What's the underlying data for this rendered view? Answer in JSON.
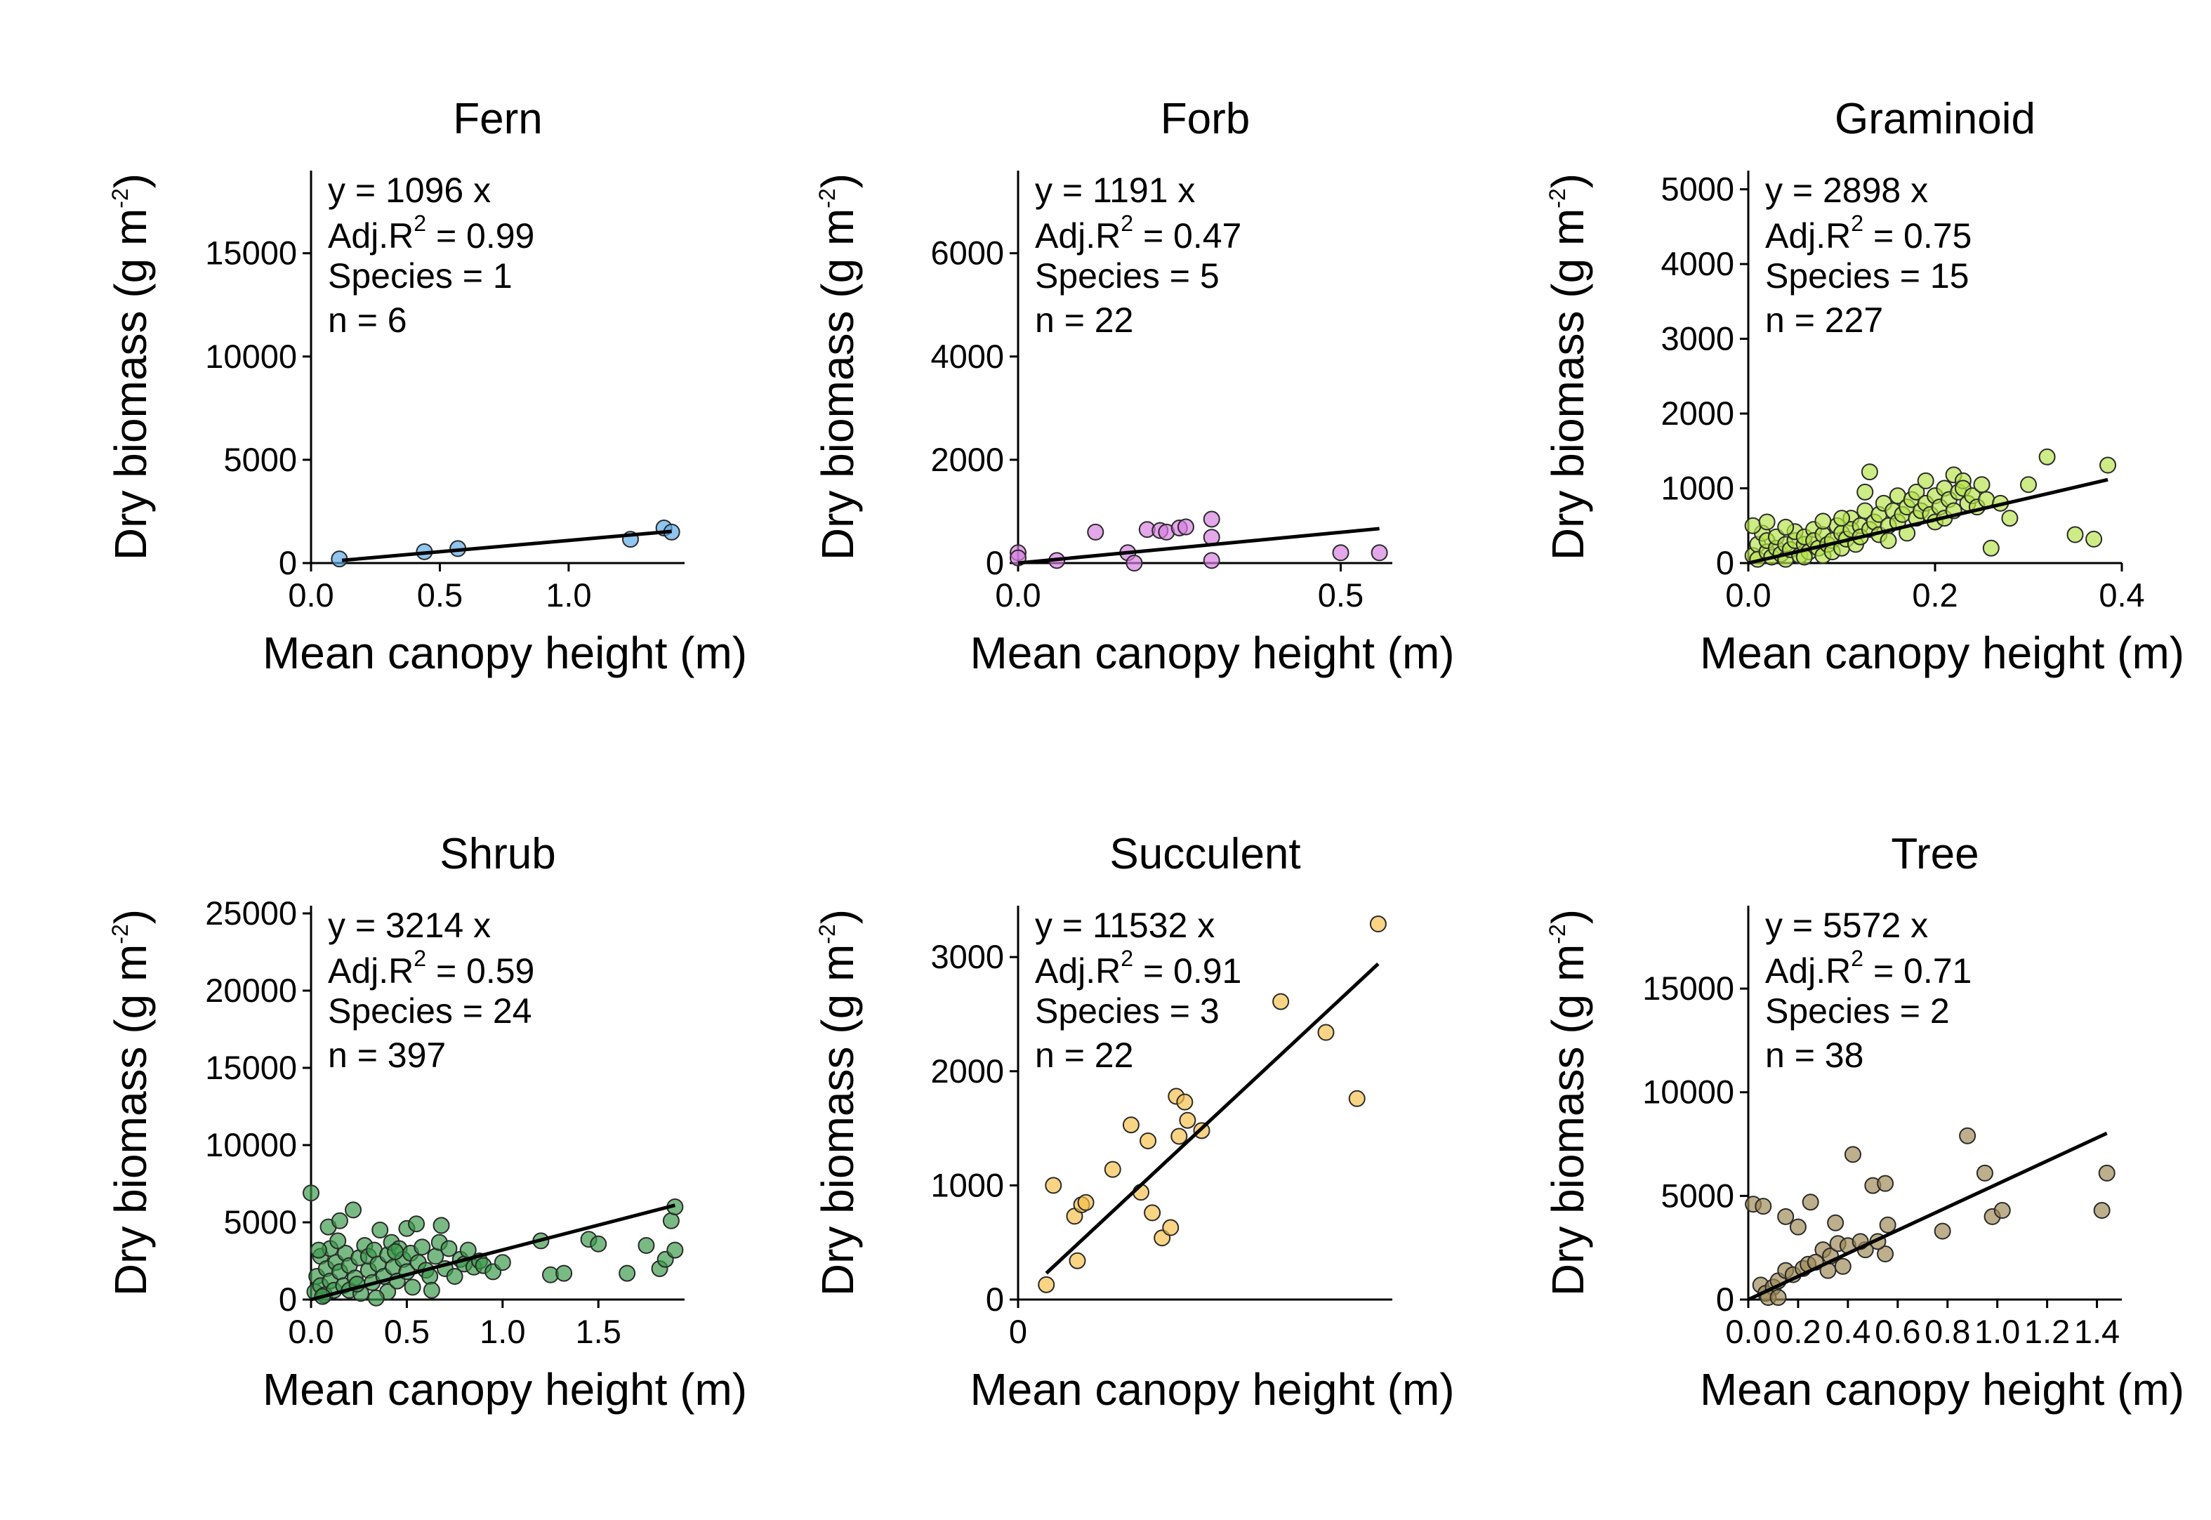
{
  "figure": {
    "xlabel": "Mean canopy height (m)",
    "ylabel_main": "Dry biomass (g m",
    "ylabel_sup": "-2",
    "ylabel_close": ")"
  },
  "chart_data": [
    {
      "type": "scatter",
      "title": "Fern",
      "color": "#5aa9e6",
      "xlim": [
        0,
        1.45
      ],
      "ylim": [
        0,
        19000
      ],
      "xticks": [
        0.0,
        0.5,
        1.0
      ],
      "xtick_labels": [
        "0.0",
        "0.5",
        "1.0"
      ],
      "yticks": [
        0,
        5000,
        10000,
        15000
      ],
      "ytick_labels": [
        "0",
        "5000",
        "10000",
        "15000"
      ],
      "slope": 1096,
      "fit_x": [
        0.12,
        1.4
      ],
      "stats": {
        "equation": "y = 1096 x",
        "r2_prefix": "Adj.R",
        "r2_sup": "2",
        "r2_value": " = 0.99",
        "species": "Species = 1",
        "n": "n = 6"
      },
      "points": [
        [
          0.11,
          200
        ],
        [
          0.44,
          550
        ],
        [
          0.57,
          700
        ],
        [
          1.24,
          1150
        ],
        [
          1.37,
          1700
        ],
        [
          1.4,
          1500
        ]
      ]
    },
    {
      "type": "scatter",
      "title": "Forb",
      "color": "#d67ee0",
      "xlim": [
        0,
        0.58
      ],
      "ylim": [
        0,
        7600
      ],
      "xticks": [
        0.0,
        0.5
      ],
      "xtick_labels": [
        "0.0",
        "0.5"
      ],
      "yticks": [
        0,
        2000,
        4000,
        6000
      ],
      "ytick_labels": [
        "0",
        "2000",
        "4000",
        "6000"
      ],
      "slope": 1191,
      "fit_x": [
        0.0,
        0.56
      ],
      "stats": {
        "equation": "y = 1191 x",
        "r2_prefix": "Adj.R",
        "r2_sup": "2",
        "r2_value": " = 0.47",
        "species": "Species = 5",
        "n": "n = 22"
      },
      "points": [
        [
          0.0,
          200
        ],
        [
          0.0,
          100
        ],
        [
          0.06,
          50
        ],
        [
          0.12,
          600
        ],
        [
          0.17,
          200
        ],
        [
          0.18,
          0
        ],
        [
          0.2,
          650
        ],
        [
          0.22,
          630
        ],
        [
          0.23,
          600
        ],
        [
          0.25,
          680
        ],
        [
          0.26,
          700
        ],
        [
          0.3,
          850
        ],
        [
          0.3,
          500
        ],
        [
          0.3,
          50
        ],
        [
          0.5,
          200
        ],
        [
          0.56,
          200
        ]
      ]
    },
    {
      "type": "scatter",
      "title": "Graminoid",
      "color": "#b6e34b",
      "xlim": [
        0,
        0.4
      ],
      "ylim": [
        0,
        5250
      ],
      "xticks": [
        0.0,
        0.2,
        0.4
      ],
      "xtick_labels": [
        "0.0",
        "0.2",
        "0.4"
      ],
      "yticks": [
        0,
        1000,
        2000,
        3000,
        4000,
        5000
      ],
      "ytick_labels": [
        "0",
        "1000",
        "2000",
        "3000",
        "4000",
        "5000"
      ],
      "slope": 2898,
      "fit_x": [
        0.0,
        0.385
      ],
      "stats": {
        "equation": "y = 2898 x",
        "r2_prefix": "Adj.R",
        "r2_sup": "2",
        "r2_value": " = 0.75",
        "species": "Species = 15",
        "n": "n = 227"
      },
      "points": [
        [
          0.005,
          100
        ],
        [
          0.01,
          250
        ],
        [
          0.01,
          50
        ],
        [
          0.015,
          400
        ],
        [
          0.02,
          150
        ],
        [
          0.02,
          300
        ],
        [
          0.025,
          80
        ],
        [
          0.03,
          200
        ],
        [
          0.03,
          350
        ],
        [
          0.035,
          120
        ],
        [
          0.04,
          250
        ],
        [
          0.04,
          50
        ],
        [
          0.045,
          180
        ],
        [
          0.05,
          300
        ],
        [
          0.05,
          420
        ],
        [
          0.055,
          100
        ],
        [
          0.06,
          250
        ],
        [
          0.06,
          350
        ],
        [
          0.065,
          150
        ],
        [
          0.07,
          450
        ],
        [
          0.07,
          300
        ],
        [
          0.075,
          200
        ],
        [
          0.08,
          100
        ],
        [
          0.08,
          380
        ],
        [
          0.085,
          250
        ],
        [
          0.09,
          300
        ],
        [
          0.09,
          150
        ],
        [
          0.095,
          500
        ],
        [
          0.1,
          400
        ],
        [
          0.1,
          200
        ],
        [
          0.105,
          320
        ],
        [
          0.11,
          600
        ],
        [
          0.11,
          450
        ],
        [
          0.115,
          250
        ],
        [
          0.12,
          500
        ],
        [
          0.12,
          350
        ],
        [
          0.125,
          700
        ],
        [
          0.125,
          950
        ],
        [
          0.13,
          1220
        ],
        [
          0.13,
          450
        ],
        [
          0.135,
          550
        ],
        [
          0.14,
          380
        ],
        [
          0.14,
          650
        ],
        [
          0.145,
          800
        ],
        [
          0.15,
          500
        ],
        [
          0.15,
          300
        ],
        [
          0.155,
          700
        ],
        [
          0.16,
          900
        ],
        [
          0.16,
          550
        ],
        [
          0.165,
          650
        ],
        [
          0.17,
          750
        ],
        [
          0.17,
          400
        ],
        [
          0.175,
          850
        ],
        [
          0.18,
          600
        ],
        [
          0.18,
          950
        ],
        [
          0.185,
          700
        ],
        [
          0.19,
          1100
        ],
        [
          0.19,
          800
        ],
        [
          0.195,
          650
        ],
        [
          0.2,
          900
        ],
        [
          0.2,
          550
        ],
        [
          0.205,
          750
        ],
        [
          0.21,
          1000
        ],
        [
          0.21,
          600
        ],
        [
          0.215,
          850
        ],
        [
          0.22,
          1180
        ],
        [
          0.22,
          700
        ],
        [
          0.225,
          950
        ],
        [
          0.23,
          1100
        ],
        [
          0.23,
          1000
        ],
        [
          0.235,
          800
        ],
        [
          0.24,
          900
        ],
        [
          0.245,
          750
        ],
        [
          0.25,
          1050
        ],
        [
          0.255,
          850
        ],
        [
          0.26,
          200
        ],
        [
          0.27,
          800
        ],
        [
          0.28,
          600
        ],
        [
          0.3,
          1050
        ],
        [
          0.32,
          1420
        ],
        [
          0.35,
          380
        ],
        [
          0.37,
          320
        ],
        [
          0.385,
          1310
        ],
        [
          0.005,
          500
        ],
        [
          0.02,
          550
        ],
        [
          0.04,
          480
        ],
        [
          0.06,
          80
        ],
        [
          0.08,
          560
        ],
        [
          0.1,
          600
        ]
      ]
    },
    {
      "type": "scatter",
      "title": "Shrub",
      "color": "#3a9a4a",
      "xlim": [
        0,
        1.95
      ],
      "ylim": [
        0,
        25500
      ],
      "xticks": [
        0.0,
        0.5,
        1.0,
        1.5
      ],
      "xtick_labels": [
        "0.0",
        "0.5",
        "1.0",
        "1.5"
      ],
      "yticks": [
        0,
        5000,
        10000,
        15000,
        20000,
        25000
      ],
      "ytick_labels": [
        "0",
        "5000",
        "10000",
        "15000",
        "20000",
        "25000"
      ],
      "slope": 3214,
      "fit_x": [
        0.0,
        1.9
      ],
      "stats": {
        "equation": "y = 3214 x",
        "r2_prefix": "Adj.R",
        "r2_sup": "2",
        "r2_value": " = 0.59",
        "species": "Species = 24",
        "n": "n = 397"
      },
      "points": [
        [
          0.0,
          6900
        ],
        [
          0.02,
          500
        ],
        [
          0.03,
          1500
        ],
        [
          0.05,
          2800
        ],
        [
          0.05,
          900
        ],
        [
          0.07,
          300
        ],
        [
          0.08,
          2000
        ],
        [
          0.09,
          4700
        ],
        [
          0.1,
          1200
        ],
        [
          0.1,
          3300
        ],
        [
          0.12,
          600
        ],
        [
          0.13,
          2400
        ],
        [
          0.15,
          1800
        ],
        [
          0.15,
          5100
        ],
        [
          0.17,
          900
        ],
        [
          0.18,
          3000
        ],
        [
          0.2,
          2200
        ],
        [
          0.2,
          600
        ],
        [
          0.22,
          5800
        ],
        [
          0.23,
          1400
        ],
        [
          0.25,
          2700
        ],
        [
          0.26,
          400
        ],
        [
          0.28,
          3500
        ],
        [
          0.3,
          1900
        ],
        [
          0.3,
          2800
        ],
        [
          0.32,
          1100
        ],
        [
          0.33,
          3200
        ],
        [
          0.35,
          2300
        ],
        [
          0.36,
          4500
        ],
        [
          0.38,
          1500
        ],
        [
          0.4,
          2900
        ],
        [
          0.4,
          500
        ],
        [
          0.42,
          3700
        ],
        [
          0.43,
          2100
        ],
        [
          0.45,
          1200
        ],
        [
          0.46,
          3300
        ],
        [
          0.48,
          2600
        ],
        [
          0.5,
          4600
        ],
        [
          0.5,
          1800
        ],
        [
          0.52,
          3000
        ],
        [
          0.53,
          800
        ],
        [
          0.55,
          4900
        ],
        [
          0.56,
          2400
        ],
        [
          0.58,
          3400
        ],
        [
          0.6,
          1900
        ],
        [
          0.62,
          1500
        ],
        [
          0.63,
          600
        ],
        [
          0.65,
          2800
        ],
        [
          0.67,
          3700
        ],
        [
          0.68,
          4800
        ],
        [
          0.7,
          2000
        ],
        [
          0.72,
          3300
        ],
        [
          0.75,
          1500
        ],
        [
          0.78,
          2600
        ],
        [
          0.8,
          2300
        ],
        [
          0.82,
          3200
        ],
        [
          0.85,
          2100
        ],
        [
          0.88,
          2500
        ],
        [
          0.9,
          2200
        ],
        [
          0.95,
          1800
        ],
        [
          1.0,
          2400
        ],
        [
          1.2,
          3800
        ],
        [
          1.25,
          1600
        ],
        [
          1.32,
          1700
        ],
        [
          1.45,
          3900
        ],
        [
          1.5,
          3600
        ],
        [
          1.65,
          1700
        ],
        [
          1.75,
          3500
        ],
        [
          1.82,
          2000
        ],
        [
          1.85,
          2600
        ],
        [
          1.88,
          5100
        ],
        [
          1.9,
          6000
        ],
        [
          1.9,
          3200
        ],
        [
          0.04,
          3200
        ],
        [
          0.06,
          200
        ],
        [
          0.14,
          3800
        ],
        [
          0.24,
          1000
        ],
        [
          0.34,
          100
        ],
        [
          0.44,
          3100
        ]
      ]
    },
    {
      "type": "scatter",
      "title": "Succulent",
      "color": "#f5c04a",
      "xlim": [
        0,
        0.265
      ],
      "ylim": [
        0,
        3450
      ],
      "xticks": [
        0
      ],
      "xtick_labels": [
        "0"
      ],
      "yticks": [
        0,
        1000,
        2000,
        3000
      ],
      "ytick_labels": [
        "0",
        "1000",
        "2000",
        "3000"
      ],
      "slope": 11532,
      "fit_x": [
        0.02,
        0.255
      ],
      "stats": {
        "equation": "y = 11532 x",
        "r2_prefix": "Adj.R",
        "r2_sup": "2",
        "r2_value": " = 0.91",
        "species": "Species = 3",
        "n": "n = 22"
      },
      "points": [
        [
          0.02,
          130
        ],
        [
          0.025,
          1000
        ],
        [
          0.04,
          730
        ],
        [
          0.042,
          340
        ],
        [
          0.045,
          830
        ],
        [
          0.048,
          850
        ],
        [
          0.067,
          1140
        ],
        [
          0.08,
          1530
        ],
        [
          0.087,
          940
        ],
        [
          0.092,
          1390
        ],
        [
          0.095,
          760
        ],
        [
          0.102,
          540
        ],
        [
          0.108,
          630
        ],
        [
          0.112,
          1780
        ],
        [
          0.114,
          1430
        ],
        [
          0.118,
          1730
        ],
        [
          0.12,
          1570
        ],
        [
          0.13,
          1480
        ],
        [
          0.186,
          2610
        ],
        [
          0.218,
          2340
        ],
        [
          0.24,
          1760
        ],
        [
          0.255,
          3290
        ]
      ]
    },
    {
      "type": "scatter",
      "title": "Tree",
      "color": "#9e8955",
      "xlim": [
        0,
        1.5
      ],
      "ylim": [
        0,
        19000
      ],
      "xticks": [
        0.0,
        0.2,
        0.4,
        0.6,
        0.8,
        1.0,
        1.2,
        1.4
      ],
      "xtick_labels": [
        "0.0",
        "0.2",
        "0.4",
        "0.6",
        "0.8",
        "1.0",
        "1.2",
        "1.4"
      ],
      "yticks": [
        0,
        5000,
        10000,
        15000
      ],
      "ytick_labels": [
        "0",
        "5000",
        "10000",
        "15000"
      ],
      "slope": 5572,
      "fit_x": [
        0.0,
        1.44
      ],
      "stats": {
        "equation": "y = 5572 x",
        "r2_prefix": "Adj.R",
        "r2_sup": "2",
        "r2_value": " = 0.71",
        "species": "Species = 2",
        "n": "n = 38"
      },
      "points": [
        [
          0.02,
          4600
        ],
        [
          0.06,
          4500
        ],
        [
          0.05,
          700
        ],
        [
          0.07,
          300
        ],
        [
          0.1,
          600
        ],
        [
          0.12,
          900
        ],
        [
          0.15,
          1400
        ],
        [
          0.15,
          4000
        ],
        [
          0.18,
          1200
        ],
        [
          0.2,
          3500
        ],
        [
          0.22,
          1500
        ],
        [
          0.24,
          1700
        ],
        [
          0.25,
          4700
        ],
        [
          0.3,
          2400
        ],
        [
          0.32,
          1400
        ],
        [
          0.33,
          2100
        ],
        [
          0.35,
          3700
        ],
        [
          0.36,
          2700
        ],
        [
          0.38,
          1600
        ],
        [
          0.4,
          2600
        ],
        [
          0.42,
          7000
        ],
        [
          0.47,
          2400
        ],
        [
          0.5,
          5500
        ],
        [
          0.55,
          5600
        ],
        [
          0.55,
          2200
        ],
        [
          0.56,
          3600
        ],
        [
          0.78,
          3300
        ],
        [
          0.88,
          7900
        ],
        [
          0.95,
          6100
        ],
        [
          0.98,
          4000
        ],
        [
          1.02,
          4300
        ],
        [
          1.42,
          4300
        ],
        [
          1.44,
          6100
        ],
        [
          0.27,
          1800
        ],
        [
          0.45,
          2800
        ],
        [
          0.08,
          100
        ],
        [
          0.12,
          100
        ],
        [
          0.52,
          2800
        ]
      ]
    }
  ]
}
